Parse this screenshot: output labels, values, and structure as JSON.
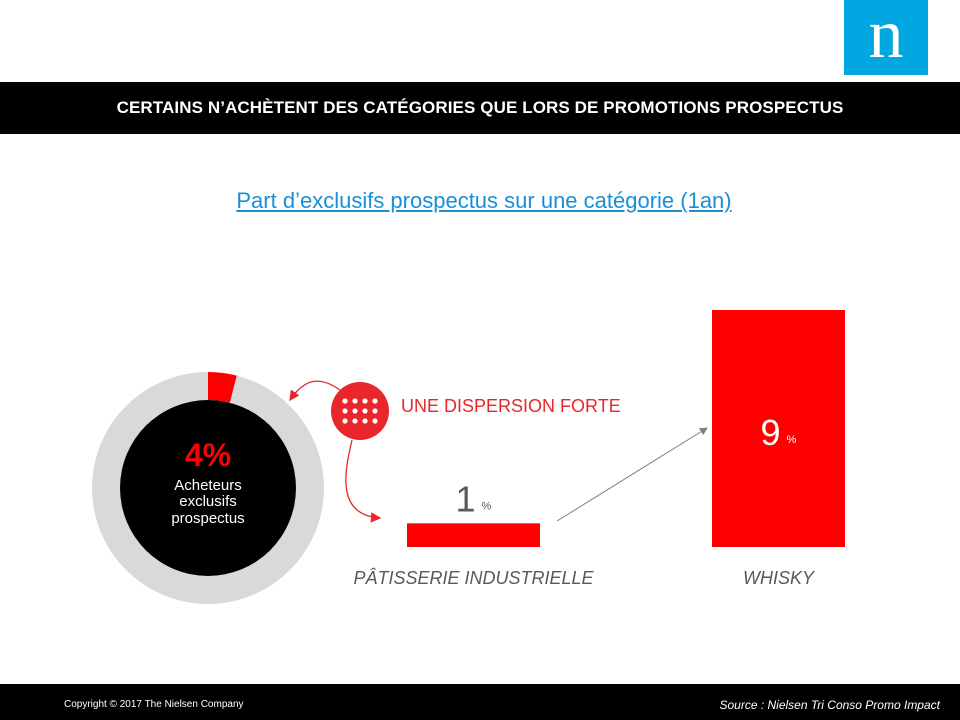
{
  "header": {
    "logo_text": "n",
    "title": "CERTAINS N’ACHÈTENT DES CATÉGORIES QUE LORS DE PROMOTIONS PROSPECTUS"
  },
  "chart_data": [
    {
      "type": "pie",
      "title": "",
      "center_value": "4%",
      "center_label": [
        "Acheteurs",
        "exclusifs",
        "prospectus"
      ],
      "slices": [
        {
          "label": "Acheteurs exclusifs prospectus",
          "value": 4,
          "color": "#ff0000"
        },
        {
          "label": "",
          "value": 96,
          "color": "#d9d9d9"
        }
      ]
    },
    {
      "type": "bar",
      "title": "Part d’exclusifs prospectus sur une catégorie (1an)",
      "categories": [
        "PÂTISSERIE INDUSTRIELLE",
        "WHISKY"
      ],
      "values": [
        1,
        9
      ],
      "value_labels": [
        "1",
        "9"
      ],
      "unit": "%",
      "color": "#ff0000",
      "ylim": [
        0,
        9
      ]
    }
  ],
  "annotation": {
    "label": "UNE DISPERSION FORTE",
    "icon": "dots-grid-icon",
    "color": "#e8262b"
  },
  "footer": {
    "copyright": "Copyright © 2017 The Nielsen Company",
    "source": "Source :  Nielsen Tri Conso Promo Impact"
  }
}
